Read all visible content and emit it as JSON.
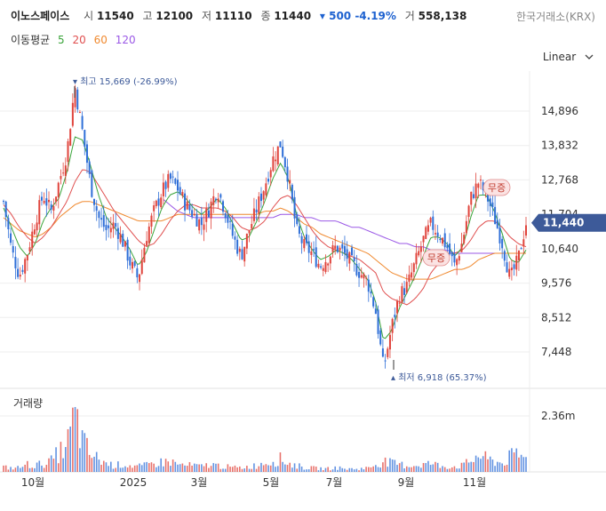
{
  "header": {
    "name": "이노스페이스",
    "open_label": "시",
    "open": "11540",
    "high_label": "고",
    "high": "12100",
    "low_label": "저",
    "low": "11110",
    "close_label": "종",
    "close": "11440",
    "change": "▾ 500 -4.19%",
    "volume_label": "거",
    "volume": "558,138",
    "exchange": "한국거래소(KRX)"
  },
  "ma_legend": {
    "label": "이동평균",
    "p5": "5",
    "p20": "20",
    "p60": "60",
    "p120": "120"
  },
  "scale_mode": "Linear",
  "colors": {
    "up": "#e0443c",
    "down": "#2f6fd8",
    "ma5": "#3aa43a",
    "ma20": "#e05050",
    "ma60": "#f08a30",
    "ma120": "#9b59e6",
    "current": "#3d5a99"
  },
  "chart_data": {
    "type": "candlestick",
    "x_ticks": [
      "10월",
      "2025",
      "3월",
      "5월",
      "7월",
      "9월",
      "11월"
    ],
    "y_ticks": [
      "14,896",
      "13,832",
      "12,768",
      "11,704",
      "10,640",
      "9,576",
      "8,512",
      "7,448"
    ],
    "y_tick_values": [
      14896,
      13832,
      12768,
      11704,
      10640,
      9576,
      8512,
      7448
    ],
    "current_price_label": "11,440",
    "current_price": 11440,
    "high_annotation": "최고 15,669 (-26.99%)",
    "high_value": 15669,
    "low_annotation": "최저 6,918 (65.37%)",
    "low_value": 6918,
    "event_markers": [
      "무증",
      "무증"
    ],
    "price_path": [
      12100,
      10600,
      9800,
      10500,
      11500,
      12300,
      11800,
      12700,
      13600,
      15669,
      14200,
      12600,
      11600,
      11200,
      11400,
      10900,
      10200,
      9700,
      11000,
      11800,
      12400,
      12800,
      12500,
      12000,
      11700,
      11400,
      11900,
      12500,
      11800,
      11000,
      10400,
      11200,
      11900,
      12600,
      13400,
      13900,
      12800,
      11200,
      10700,
      10500,
      10100,
      10400,
      10700,
      10500,
      10200,
      9900,
      9600,
      8700,
      6918,
      8200,
      9200,
      9500,
      10200,
      10900,
      11400,
      11100,
      10700,
      10100,
      10900,
      12200,
      12700,
      12300,
      11600,
      10800,
      9700,
      10300,
      11440
    ],
    "ma5": [
      11900,
      11300,
      10700,
      10400,
      10800,
      11500,
      11900,
      12200,
      13000,
      14100,
      14000,
      13200,
      12300,
      11600,
      11300,
      11000,
      10600,
      10100,
      10500,
      11200,
      11900,
      12300,
      12400,
      12200,
      11900,
      11700,
      11900,
      12200,
      11900,
      11400,
      10900,
      11000,
      11500,
      12100,
      12800,
      13300,
      12800,
      11700,
      11000,
      10600,
      10300,
      10400,
      10600,
      10500,
      10300,
      10000,
      9700,
      9000,
      7800,
      8100,
      8800,
      9300,
      9800,
      10400,
      11000,
      11000,
      10800,
      10400,
      10700,
      11600,
      12300,
      12300,
      11800,
      11100,
      10300,
      10200,
      10600
    ],
    "ma20": [
      12000,
      11700,
      11300,
      11000,
      10800,
      11000,
      11300,
      11700,
      12100,
      12700,
      13100,
      13000,
      12600,
      12200,
      11800,
      11500,
      11200,
      10900,
      10700,
      10800,
      11100,
      11500,
      11800,
      12000,
      12000,
      11900,
      11900,
      11900,
      11800,
      11600,
      11300,
      11200,
      11300,
      11500,
      11900,
      12200,
      12300,
      12000,
      11600,
      11200,
      10900,
      10700,
      10600,
      10500,
      10400,
      10300,
      10100,
      9900,
      9300,
      9100,
      9000,
      8900,
      9100,
      9400,
      9900,
      10200,
      10500,
      10500,
      10600,
      10900,
      11300,
      11500,
      11500,
      11300,
      11000,
      10800,
      10700
    ],
    "ma60": [
      11600,
      11400,
      11200,
      11100,
      11000,
      11100,
      11300,
      11600,
      11800,
      12000,
      12100,
      12100,
      12000,
      11900,
      11800,
      11700,
      11600,
      11500,
      11500,
      11500,
      11500,
      11600,
      11700,
      11700,
      11700,
      11700,
      11700,
      11700,
      11700,
      11700,
      11700,
      11700,
      11700,
      11800,
      11800,
      11900,
      11800,
      11600,
      11400,
      11300,
      11100,
      11000,
      10900,
      10800,
      10700,
      10600,
      10500,
      10300,
      10100,
      9900,
      9800,
      9700,
      9700,
      9700,
      9700,
      9800,
      9900,
      10000,
      10000,
      10100,
      10300,
      10400,
      10500,
      10500,
      10500,
      10500,
      10500
    ],
    "ma120": [
      null,
      null,
      null,
      null,
      null,
      null,
      null,
      null,
      null,
      null,
      null,
      null,
      null,
      null,
      null,
      null,
      null,
      null,
      null,
      null,
      12200,
      12000,
      11800,
      11700,
      11600,
      11600,
      11600,
      11600,
      11600,
      11600,
      11600,
      11600,
      11600,
      11600,
      11600,
      11700,
      11700,
      11700,
      11600,
      11600,
      11500,
      11500,
      11500,
      11400,
      11300,
      11300,
      11200,
      11100,
      11000,
      10900,
      10800,
      10800,
      10700,
      10700,
      10600,
      10600,
      10600,
      10500,
      10500,
      10500,
      10500,
      10500,
      10500,
      10500,
      10500,
      10500,
      10500
    ],
    "volume_label": "거래량",
    "volume_tick": "2.36m",
    "volume_tick_value": 2.36,
    "volume_path": [
      0.22,
      0.18,
      0.2,
      0.35,
      0.3,
      0.4,
      0.5,
      0.9,
      1.2,
      2.7,
      1.4,
      0.8,
      0.6,
      0.4,
      0.3,
      0.35,
      0.3,
      0.25,
      0.3,
      0.4,
      0.45,
      0.5,
      0.35,
      0.3,
      0.3,
      0.25,
      0.35,
      0.3,
      0.25,
      0.2,
      0.2,
      0.25,
      0.3,
      0.45,
      0.5,
      0.6,
      0.4,
      0.3,
      0.2,
      0.18,
      0.16,
      0.15,
      0.2,
      0.15,
      0.14,
      0.15,
      0.18,
      0.35,
      0.5,
      0.4,
      0.35,
      0.3,
      0.3,
      0.35,
      0.4,
      0.3,
      0.25,
      0.25,
      0.3,
      0.5,
      0.8,
      0.6,
      0.5,
      0.4,
      0.7,
      0.8,
      0.6
    ]
  }
}
